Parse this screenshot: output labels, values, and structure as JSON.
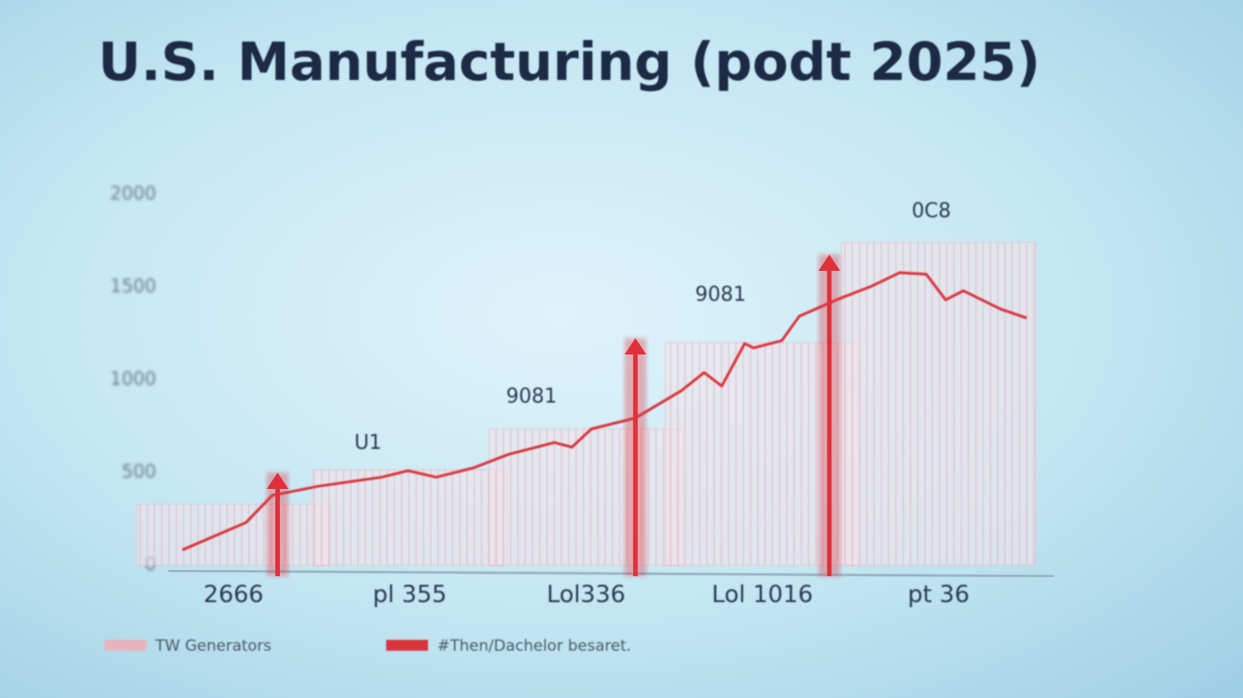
{
  "chart_data": {
    "type": "bar",
    "title": "U.S. Manufacturing (podt 2025)",
    "categories": [
      "2666",
      "pl 355",
      "Lol336",
      "Lol 1016",
      "pt 36"
    ],
    "ylim": [
      0,
      2200
    ],
    "yticks": [
      0,
      500,
      1000,
      1500,
      2000
    ],
    "grid": true,
    "series": [
      {
        "name": "TW Generators",
        "color": "#e8b4bc",
        "values": [
          328,
          515,
          735,
          1200,
          1740
        ]
      },
      {
        "name": "#Then/Dachelor besaret.",
        "color": "#d9343d",
        "type": "line",
        "x": [
          -0.29,
          0.07,
          0.22,
          0.48,
          0.84,
          0.99,
          1.15,
          1.36,
          1.56,
          1.82,
          1.92,
          2.03,
          2.28,
          2.54,
          2.67,
          2.77,
          2.9,
          2.95,
          3.11,
          3.21,
          3.42,
          3.62,
          3.78,
          3.93,
          4.04,
          4.14,
          4.35,
          4.5
        ],
        "values": [
          83,
          230,
          377,
          426,
          475,
          510,
          475,
          525,
          598,
          662,
          637,
          735,
          794,
          941,
          1039,
          966,
          1196,
          1172,
          1211,
          1343,
          1431,
          1505,
          1578,
          1569,
          1431,
          1480,
          1382,
          1333
        ]
      }
    ],
    "arrows": {
      "color": "#e0303a",
      "x": [
        0.25,
        2.28,
        3.38
      ],
      "values": [
        500,
        1225,
        1676
      ]
    },
    "annotations": [
      "U1",
      "9081",
      "9081",
      "0C8"
    ]
  }
}
